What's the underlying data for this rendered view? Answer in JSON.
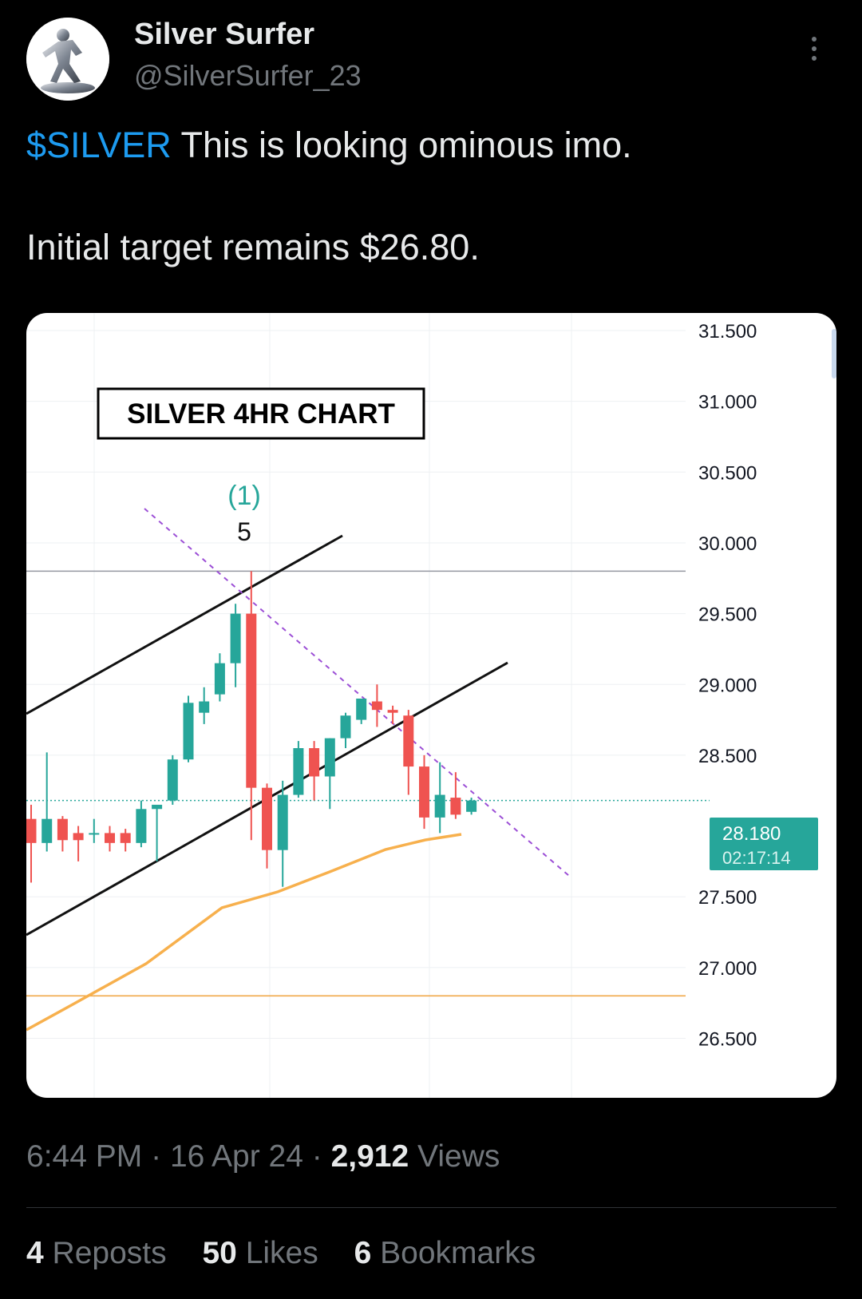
{
  "author": {
    "display_name": "Silver Surfer",
    "handle": "@SilverSurfer_23",
    "avatar_icon": "silver-surfer-avatar-icon"
  },
  "tweet": {
    "cashtag": "$SILVER",
    "line1_rest": " This is looking ominous imo.",
    "line2": "Initial target remains $26.80."
  },
  "meta": {
    "time": "6:44 PM",
    "separator": "·",
    "date": "16 Apr 24",
    "views_count": "2,912",
    "views_label": "Views"
  },
  "stats": {
    "reposts_count": "4",
    "reposts_label": "Reposts",
    "likes_count": "50",
    "likes_label": "Likes",
    "bookmarks_count": "6",
    "bookmarks_label": "Bookmarks"
  },
  "chart_data": {
    "type": "candlestick",
    "title": "SILVER 4HR CHART",
    "wave_label_degree": "(1)",
    "wave_label": "5",
    "y_ticks": [
      "31.500",
      "31.000",
      "30.500",
      "30.000",
      "29.500",
      "29.000",
      "28.500",
      "27.500",
      "27.000",
      "26.500"
    ],
    "ylim": [
      26.4,
      31.65
    ],
    "last_price": "28.180",
    "countdown": "02:17:14",
    "horizontal_levels": {
      "resistance": 29.8,
      "target": 26.8
    },
    "colors": {
      "up": "#26a69a",
      "down": "#ef5350",
      "ma": "#f7b04d",
      "target_line": "#f0a848",
      "wave_degree": "#26a69a",
      "trendline_dashed": "#9c4fd6"
    },
    "candles": [
      {
        "o": 28.05,
        "h": 28.15,
        "l": 27.6,
        "c": 27.88
      },
      {
        "o": 27.88,
        "h": 28.52,
        "l": 27.82,
        "c": 28.05
      },
      {
        "o": 28.05,
        "h": 28.07,
        "l": 27.82,
        "c": 27.9
      },
      {
        "o": 27.95,
        "h": 28.0,
        "l": 27.75,
        "c": 27.9
      },
      {
        "o": 27.95,
        "h": 28.05,
        "l": 27.88,
        "c": 27.95
      },
      {
        "o": 27.95,
        "h": 28.0,
        "l": 27.82,
        "c": 27.88
      },
      {
        "o": 27.95,
        "h": 27.98,
        "l": 27.82,
        "c": 27.88
      },
      {
        "o": 27.88,
        "h": 28.18,
        "l": 27.85,
        "c": 28.12
      },
      {
        "o": 28.12,
        "h": 28.15,
        "l": 27.75,
        "c": 28.15
      },
      {
        "o": 28.18,
        "h": 28.5,
        "l": 28.15,
        "c": 28.47
      },
      {
        "o": 28.47,
        "h": 28.92,
        "l": 28.45,
        "c": 28.87
      },
      {
        "o": 28.8,
        "h": 28.98,
        "l": 28.72,
        "c": 28.88
      },
      {
        "o": 28.93,
        "h": 29.22,
        "l": 28.88,
        "c": 29.15
      },
      {
        "o": 29.15,
        "h": 29.57,
        "l": 28.98,
        "c": 29.5
      },
      {
        "o": 29.5,
        "h": 29.8,
        "l": 27.9,
        "c": 28.27
      },
      {
        "o": 28.27,
        "h": 28.3,
        "l": 27.7,
        "c": 27.83
      },
      {
        "o": 27.83,
        "h": 28.32,
        "l": 27.57,
        "c": 28.22
      },
      {
        "o": 28.22,
        "h": 28.6,
        "l": 28.2,
        "c": 28.55
      },
      {
        "o": 28.55,
        "h": 28.6,
        "l": 28.18,
        "c": 28.35
      },
      {
        "o": 28.35,
        "h": 28.62,
        "l": 28.12,
        "c": 28.62
      },
      {
        "o": 28.62,
        "h": 28.8,
        "l": 28.55,
        "c": 28.78
      },
      {
        "o": 28.75,
        "h": 28.9,
        "l": 28.72,
        "c": 28.9
      },
      {
        "o": 28.88,
        "h": 29.0,
        "l": 28.7,
        "c": 28.82
      },
      {
        "o": 28.82,
        "h": 28.85,
        "l": 28.72,
        "c": 28.8
      },
      {
        "o": 28.78,
        "h": 28.82,
        "l": 28.22,
        "c": 28.42
      },
      {
        "o": 28.42,
        "h": 28.5,
        "l": 27.98,
        "c": 28.06
      },
      {
        "o": 28.06,
        "h": 28.45,
        "l": 27.95,
        "c": 28.22
      },
      {
        "o": 28.2,
        "h": 28.38,
        "l": 28.05,
        "c": 28.08
      },
      {
        "o": 28.1,
        "h": 28.2,
        "l": 28.08,
        "c": 28.18
      }
    ]
  }
}
